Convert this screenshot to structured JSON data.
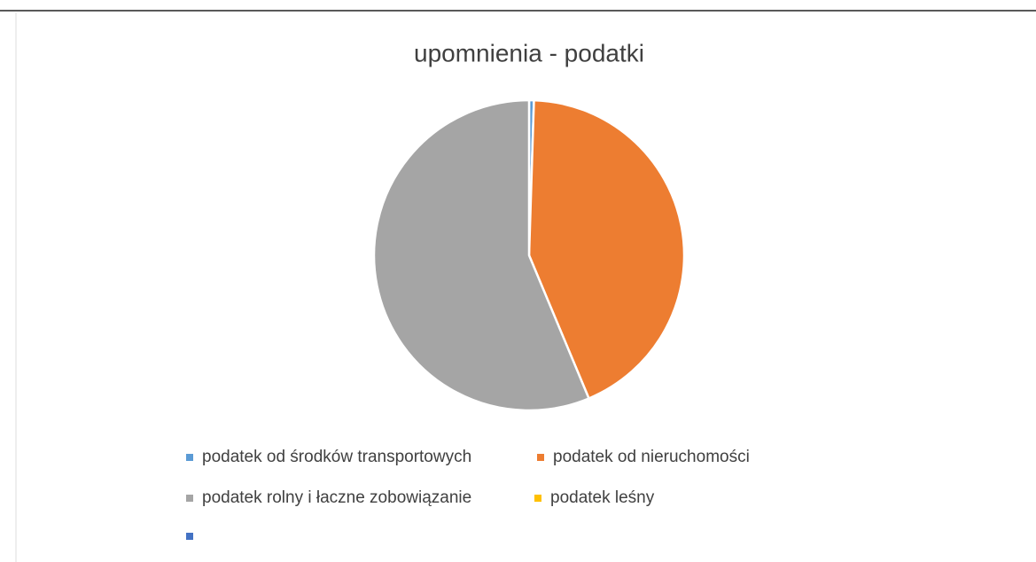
{
  "chart_data": {
    "type": "pie",
    "title": "upomnienia - podatki",
    "categories": [
      "podatek od środków transportowych",
      "podatek od nieruchomości",
      "podatek rolny i łaczne zobowiązanie",
      "podatek leśny",
      null
    ],
    "values": [
      0.5,
      43.2,
      56.3,
      0,
      0
    ],
    "colors": [
      "#5b9bd5",
      "#ed7d31",
      "#a5a5a5",
      "#ffc000",
      "#4472c4"
    ],
    "legend": "bottom"
  }
}
